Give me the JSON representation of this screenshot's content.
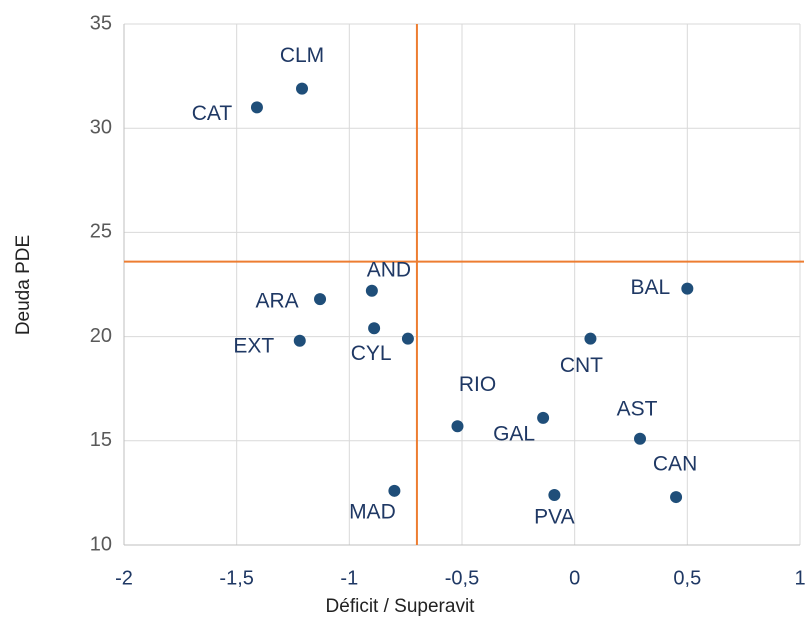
{
  "chart_data": {
    "type": "scatter",
    "x_label": "Déficit / Superavit",
    "y_label": "Deuda PDE",
    "labels": [
      "CLM",
      "CAT",
      "AND",
      "ARA",
      "BAL",
      "CYL",
      "EXT",
      null,
      "CNT",
      "RIO",
      "GAL",
      "AST",
      "CAN",
      "MAD",
      "PVA"
    ],
    "x": [
      -1.21,
      -1.41,
      -0.9,
      -1.13,
      0.5,
      -0.89,
      -1.22,
      -0.74,
      0.07,
      -0.52,
      -0.14,
      0.29,
      0.45,
      -0.8,
      -0.09
    ],
    "y": [
      31.9,
      31.0,
      22.2,
      21.8,
      22.3,
      20.4,
      19.8,
      19.9,
      19.9,
      15.7,
      16.1,
      15.1,
      12.3,
      12.6,
      12.4
    ],
    "color": "#1f4e79",
    "xlim": [
      -2,
      1
    ],
    "xticks": [
      -2,
      {
        "value": -1.5,
        "label": "-1,5"
      },
      -1,
      {
        "value": -0.5,
        "label": "-0,5"
      },
      0,
      {
        "value": 0.5,
        "label": "0,5"
      },
      1
    ],
    "ylim": [
      10,
      35
    ],
    "yticks": [
      10,
      15,
      20,
      25,
      30,
      35
    ],
    "grid": true,
    "ref_lines": {
      "x": -0.7,
      "y": 23.6,
      "color": "#ed7d31"
    }
  }
}
